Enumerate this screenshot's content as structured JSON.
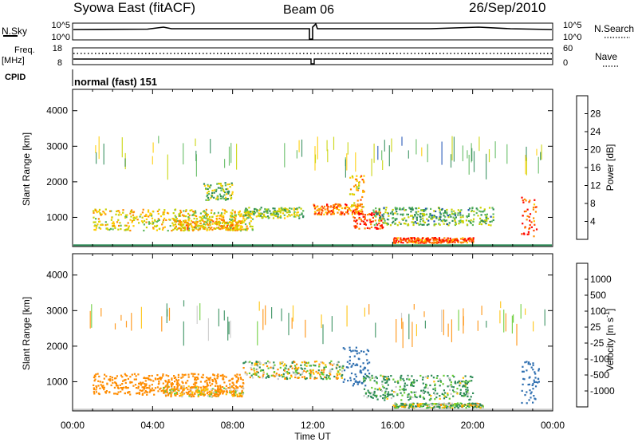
{
  "header": {
    "station": "Syowa East (fitACF)",
    "beam": "Beam 06",
    "date": "26/Sep/2010"
  },
  "panels": {
    "nsky": {
      "label": "N.Sky",
      "ticks": [
        "10^5",
        "10^0"
      ],
      "right_ticks": [
        "10^5",
        "10^0"
      ],
      "right_label": "N.Search"
    },
    "freq": {
      "label_line1": "Freq.",
      "label_line2": "[MHz]",
      "ticks": [
        "18",
        "8"
      ],
      "right_ticks": [
        "60",
        "0"
      ],
      "right_label": "Nave"
    },
    "cpid": {
      "label": "CPID",
      "value": "normal (fast) 151"
    }
  },
  "colors": {
    "power": [
      "#0000ff",
      "#1a4fb4",
      "#2e8b57",
      "#5cb85c",
      "#c8d200",
      "#ffcc00",
      "#ff8c00",
      "#ff4500",
      "#ff0000"
    ],
    "velocity": [
      "#ff0000",
      "#ff5a00",
      "#ff8c00",
      "#ffc000",
      "#c8c8c8",
      "#c8c8c8",
      "#66cc33",
      "#2e8b57",
      "#2f6fb0",
      "#1a3a9a"
    ]
  },
  "chart_data": [
    {
      "type": "heatmap",
      "title": "",
      "ylabel": "Slant Range [km]",
      "xlabel": "",
      "xlim": [
        "00:00",
        "24:00"
      ],
      "ylim": [
        180,
        4600
      ],
      "yticks": [
        "4000",
        "3000",
        "2000",
        "1000"
      ],
      "colorbar": {
        "label": "Power [dB]",
        "ticks": [
          "28",
          "24",
          "20",
          "16",
          "12",
          "8",
          "4"
        ],
        "range": [
          0,
          32
        ]
      },
      "bands": [
        {
          "t": [
            1.0,
            9.0
          ],
          "r": [
            650,
            1250
          ],
          "v": 18
        },
        {
          "t": [
            5.0,
            8.5
          ],
          "r": [
            650,
            950
          ],
          "v": 20
        },
        {
          "t": [
            6.5,
            8.0
          ],
          "r": [
            1500,
            2000
          ],
          "v": 14
        },
        {
          "t": [
            8.5,
            11.5
          ],
          "r": [
            1000,
            1300
          ],
          "v": 14
        },
        {
          "t": [
            12.0,
            14.5
          ],
          "r": [
            1100,
            1400
          ],
          "v": 24
        },
        {
          "t": [
            14.0,
            15.5
          ],
          "r": [
            700,
            1200
          ],
          "v": 28
        },
        {
          "t": [
            13.8,
            14.6
          ],
          "r": [
            1300,
            2200
          ],
          "v": 20
        },
        {
          "t": [
            15.0,
            21.0
          ],
          "r": [
            800,
            1300
          ],
          "v": 12
        },
        {
          "t": [
            16.0,
            20.0
          ],
          "r": [
            300,
            450
          ],
          "v": 26
        },
        {
          "t": [
            22.4,
            23.2
          ],
          "r": [
            400,
            1600
          ],
          "v": 26
        }
      ]
    },
    {
      "type": "heatmap",
      "title": "",
      "ylabel": "Slant Range [km]",
      "xlabel": "Time UT",
      "xlim": [
        "00:00",
        "24:00"
      ],
      "ylim": [
        180,
        4600
      ],
      "xticks": [
        "00:00",
        "04:00",
        "08:00",
        "12:00",
        "16:00",
        "20:00",
        "00:00"
      ],
      "yticks": [
        "4000",
        "3000",
        "2000",
        "1000"
      ],
      "colorbar": {
        "label": "Velocity [m s^-1]",
        "ticks": [
          "1000",
          "500",
          "100",
          "25",
          "-25",
          "-100",
          "-500",
          "-1000"
        ],
        "range": [
          -1000,
          1000
        ]
      },
      "bands": [
        {
          "t": [
            1.0,
            8.5
          ],
          "r": [
            650,
            1250
          ],
          "v": -300
        },
        {
          "t": [
            4.5,
            8.5
          ],
          "r": [
            600,
            900
          ],
          "v": -120
        },
        {
          "t": [
            8.5,
            13.5
          ],
          "r": [
            1100,
            1600
          ],
          "v": 0
        },
        {
          "t": [
            13.5,
            14.8
          ],
          "r": [
            900,
            2000
          ],
          "v": 700
        },
        {
          "t": [
            14.5,
            20.0
          ],
          "r": [
            500,
            1200
          ],
          "v": 150
        },
        {
          "t": [
            16.0,
            20.5
          ],
          "r": [
            280,
            420
          ],
          "v": 60
        },
        {
          "t": [
            22.4,
            23.3
          ],
          "r": [
            400,
            1600
          ],
          "v": 800
        }
      ]
    }
  ]
}
